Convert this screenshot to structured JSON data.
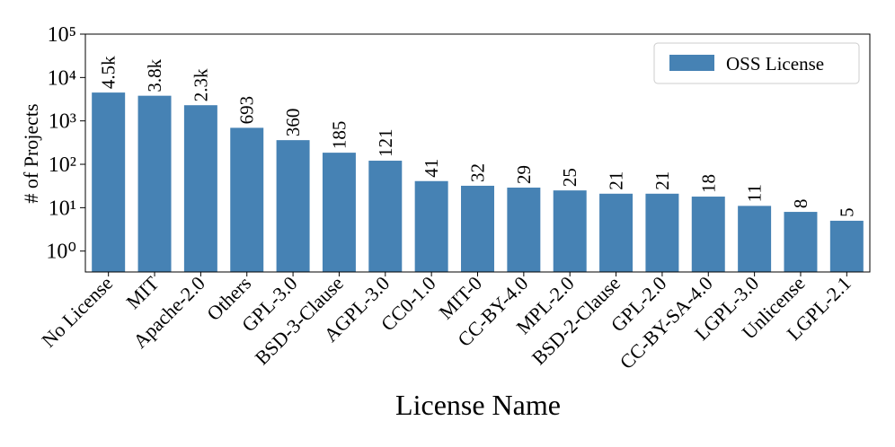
{
  "chart_data": {
    "type": "bar",
    "log_scale": true,
    "x_label": "License Name",
    "y_label": "# of Projects",
    "categories": [
      "No License",
      "MIT",
      "Apache-2.0",
      "Others",
      "GPL-3.0",
      "BSD-3-Clause",
      "AGPL-3.0",
      "CC0-1.0",
      "MIT-0",
      "CC-BY-4.0",
      "MPL-2.0",
      "BSD-2-Clause",
      "GPL-2.0",
      "CC-BY-SA-4.0",
      "LGPL-3.0",
      "Unlicense",
      "LGPL-2.1"
    ],
    "series": [
      {
        "name": "OSS License",
        "color": "#4682b4",
        "values": [
          4500,
          3800,
          2300,
          693,
          360,
          185,
          121,
          41,
          32,
          29,
          25,
          21,
          21,
          18,
          11,
          8,
          5
        ],
        "value_labels": [
          "4.5k",
          "3.8k",
          "2.3k",
          "693",
          "360",
          "185",
          "121",
          "41",
          "32",
          "29",
          "25",
          "21",
          "21",
          "18",
          "11",
          "8",
          "5"
        ]
      }
    ],
    "ylim": [
      0.33,
      100000
    ],
    "yticks": [
      {
        "value": 1,
        "label": "10⁰"
      },
      {
        "value": 10,
        "label": "10¹"
      },
      {
        "value": 100,
        "label": "10²"
      },
      {
        "value": 1000,
        "label": "10³"
      },
      {
        "value": 10000,
        "label": "10⁴"
      },
      {
        "value": 100000,
        "label": "10⁵"
      }
    ],
    "legend_position": "upper right"
  }
}
